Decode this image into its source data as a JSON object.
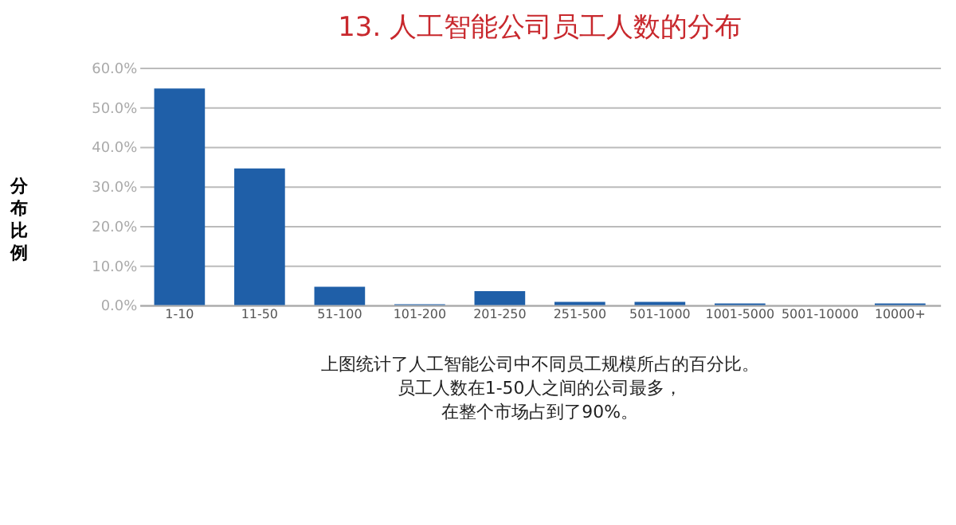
{
  "chart_data": {
    "type": "bar",
    "title": "13. 人工智能公司员工人数的分布",
    "ylabel": "分布比例",
    "categories": [
      "1-10",
      "11-50",
      "51-100",
      "101-200",
      "201-250",
      "251-500",
      "501-1000",
      "1001-5000",
      "5001-10000",
      "10000+"
    ],
    "values": [
      54.7,
      34.5,
      4.6,
      0.2,
      3.5,
      0.8,
      0.8,
      0.4,
      0,
      0.4
    ],
    "color": "#1f5fa8",
    "ylim": [
      0,
      60
    ],
    "yticks": [
      {
        "value": 0,
        "label": "0.0%"
      },
      {
        "value": 10,
        "label": "10.0%"
      },
      {
        "value": 20,
        "label": "20.0%"
      },
      {
        "value": 30,
        "label": "30.0%"
      },
      {
        "value": 40,
        "label": "40.0%"
      },
      {
        "value": 50,
        "label": "50.0%"
      },
      {
        "value": 60,
        "label": "60.0%"
      }
    ],
    "grid": "y",
    "annotations": [
      "上图统计了人工智能公司中不同员工规模所占的百分比。",
      "员工人数在1-50人之间的公司最多，",
      "在整个市场占到了90%。"
    ]
  }
}
